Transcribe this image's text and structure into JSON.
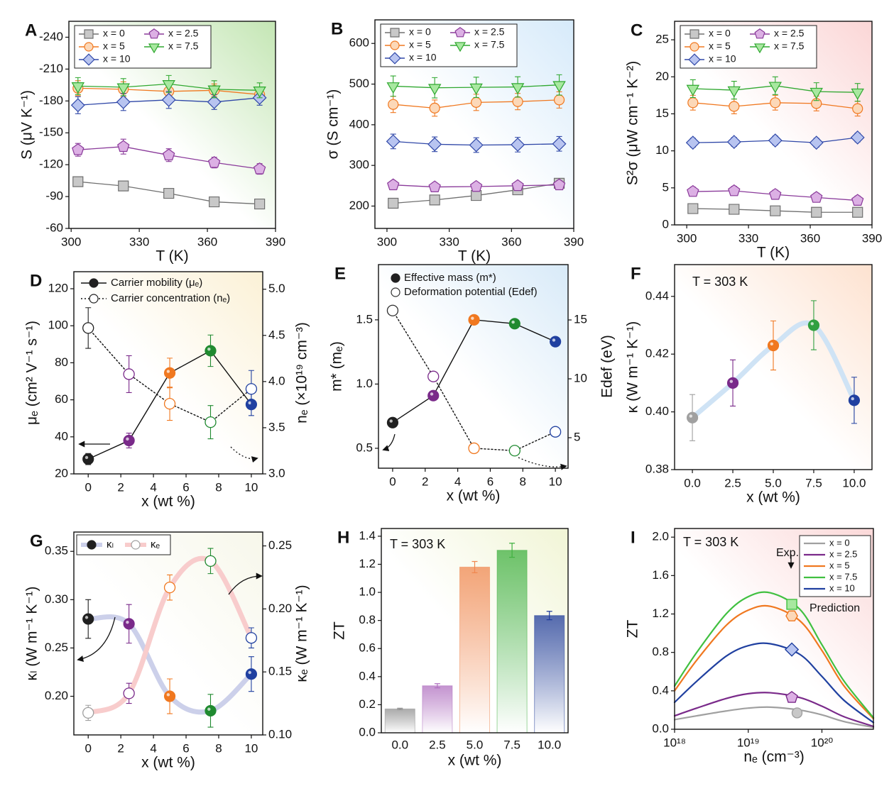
{
  "chart_data": [
    {
      "panel": "A",
      "type": "line",
      "x": [
        303,
        323,
        343,
        363,
        383
      ],
      "xlim": [
        299,
        390
      ],
      "xticks": [
        300,
        330,
        360,
        390
      ],
      "ylim": [
        -60,
        -255
      ],
      "yticks": [
        -240,
        -210,
        -180,
        -150,
        -120,
        -90,
        -60
      ],
      "x_label": "T (K)",
      "y_label": "S (μV K⁻¹)",
      "legend": "upper left",
      "series": [
        {
          "name": "x = 0",
          "color": "#707070",
          "fill": "#c8c8c8",
          "marker": "square",
          "values": [
            -104,
            -100,
            -93,
            -85,
            -83
          ],
          "errors": [
            4,
            4,
            4,
            3,
            3
          ]
        },
        {
          "name": "x = 5",
          "color": "#f07820",
          "fill": "#fcd8b8",
          "marker": "circle",
          "values": [
            -192,
            -191,
            -189,
            -190,
            -186
          ],
          "errors": [
            7,
            7,
            6,
            6,
            6
          ]
        },
        {
          "name": "x = 10",
          "color": "#3048a8",
          "fill": "#b8c4f0",
          "marker": "diamond",
          "values": [
            -176,
            -179,
            -181,
            -179,
            -183
          ],
          "errors": [
            8,
            8,
            8,
            7,
            7
          ]
        },
        {
          "name": "x = 2.5",
          "color": "#8a3a9a",
          "fill": "#dcb0e4",
          "marker": "pentagon",
          "values": [
            -134,
            -137,
            -129,
            -122,
            -116
          ],
          "errors": [
            6,
            7,
            6,
            5,
            5
          ]
        },
        {
          "name": "x = 7.5",
          "color": "#30a830",
          "fill": "#a8e8a0",
          "marker": "triangle-down",
          "values": [
            -194,
            -193,
            -196,
            -191,
            -190
          ],
          "errors": [
            8,
            8,
            8,
            8,
            7
          ]
        }
      ]
    },
    {
      "panel": "B",
      "type": "line",
      "x": [
        303,
        323,
        343,
        363,
        383
      ],
      "xlim": [
        294.2,
        390
      ],
      "xticks": [
        300,
        330,
        360,
        390
      ],
      "ylim": [
        145,
        658
      ],
      "yticks": [
        200,
        300,
        400,
        500,
        600
      ],
      "x_label": "T (K)",
      "y_label": "σ (S cm⁻¹)",
      "legend": "upper left",
      "series": [
        {
          "name": "x = 0",
          "color": "#707070",
          "fill": "#c8c8c8",
          "marker": "square",
          "values": [
            207,
            215,
            226,
            240,
            256
          ],
          "errors": [
            10,
            10,
            10,
            10,
            10
          ]
        },
        {
          "name": "x = 5",
          "color": "#f07820",
          "fill": "#fcd8b8",
          "marker": "circle",
          "values": [
            450,
            441,
            455,
            457,
            461
          ],
          "errors": [
            20,
            20,
            20,
            20,
            20
          ]
        },
        {
          "name": "x = 10",
          "color": "#3048a8",
          "fill": "#b8c4f0",
          "marker": "diamond",
          "values": [
            359,
            352,
            350,
            351,
            353
          ],
          "errors": [
            18,
            18,
            18,
            18,
            18
          ]
        },
        {
          "name": "x = 2.5",
          "color": "#8a3a9a",
          "fill": "#dcb0e4",
          "marker": "pentagon",
          "values": [
            252,
            247,
            248,
            250,
            252
          ],
          "errors": [
            10,
            10,
            10,
            10,
            10
          ]
        },
        {
          "name": "x = 7.5",
          "color": "#30a830",
          "fill": "#a8e8a0",
          "marker": "triangle-down",
          "values": [
            495,
            491,
            492,
            493,
            498
          ],
          "errors": [
            25,
            25,
            25,
            25,
            25
          ]
        }
      ]
    },
    {
      "panel": "C",
      "type": "line",
      "x": [
        303,
        323,
        343,
        363,
        383
      ],
      "xlim": [
        294.1,
        390
      ],
      "xticks": [
        300,
        330,
        360,
        390
      ],
      "ylim": [
        0,
        27.5
      ],
      "yticks": [
        0,
        5,
        10,
        15,
        20,
        25
      ],
      "x_label": "T (K)",
      "y_label": "S²σ (μW cm⁻¹ K⁻²)",
      "legend": "upper left",
      "series": [
        {
          "name": "x = 0",
          "color": "#707070",
          "fill": "#c8c8c8",
          "marker": "square",
          "values": [
            2.2,
            2.1,
            1.9,
            1.7,
            1.7
          ],
          "errors": [
            0.6,
            0.6,
            0.6,
            0.6,
            0.6
          ]
        },
        {
          "name": "x = 5",
          "color": "#f07820",
          "fill": "#fcd8b8",
          "marker": "circle",
          "values": [
            16.5,
            16.0,
            16.5,
            16.4,
            15.7
          ],
          "errors": [
            1,
            1,
            1,
            1,
            1
          ]
        },
        {
          "name": "x = 10",
          "color": "#3048a8",
          "fill": "#b8c4f0",
          "marker": "diamond",
          "values": [
            11.1,
            11.2,
            11.4,
            11.1,
            11.8
          ],
          "errors": [
            0.6,
            0.6,
            0.6,
            0.6,
            0.6
          ]
        },
        {
          "name": "x = 2.5",
          "color": "#8a3a9a",
          "fill": "#dcb0e4",
          "marker": "pentagon",
          "values": [
            4.5,
            4.6,
            4.1,
            3.7,
            3.3
          ],
          "errors": [
            0.6,
            0.6,
            0.6,
            0.6,
            0.6
          ]
        },
        {
          "name": "x = 7.5",
          "color": "#30a830",
          "fill": "#a8e8a0",
          "marker": "triangle-down",
          "values": [
            18.4,
            18.2,
            18.8,
            18.0,
            17.9
          ],
          "errors": [
            1.2,
            1.2,
            1.2,
            1.2,
            1.2
          ]
        }
      ]
    },
    {
      "panel": "D",
      "type": "line",
      "x": [
        0,
        2.5,
        5,
        7.5,
        10
      ],
      "xlim": [
        -0.88,
        10.7
      ],
      "xticks": [
        0,
        2,
        4,
        6,
        8,
        10
      ],
      "ylim": [
        20,
        129.2
      ],
      "yticks": [
        20,
        40,
        60,
        80,
        100,
        120
      ],
      "y2lim": [
        3.0,
        5.19
      ],
      "y2ticks": [
        {
          "value": 3,
          "label": "3.0"
        },
        3.5,
        {
          "value": 4,
          "label": "4.0"
        },
        4.5,
        {
          "value": 5,
          "label": "5.0"
        }
      ],
      "x_label": "x (wt %)",
      "y_label": "μₑ (cm² V⁻¹ s⁻¹)",
      "y2_label": "nₑ (×10¹⁹ cm⁻³)",
      "legend": "upper left",
      "series": [
        {
          "name": "Carrier mobility (μₑ)",
          "color": "#111111",
          "marker": "circle",
          "point_colors": [
            "#202020",
            "#7a2a8a",
            "#f07820",
            "#208a30",
            "#2040a0"
          ],
          "values": [
            28,
            38,
            74.5,
            86.5,
            57.5
          ],
          "errors": [
            3,
            4,
            8,
            8.5,
            6
          ]
        },
        {
          "name": "Carrier concentration (nₑ)",
          "color": "#111111",
          "marker": "circle",
          "open": true,
          "dash": true,
          "axis": "y2",
          "point_colors": [
            "#202020",
            "#7a2a8a",
            "#f07820",
            "#208a30",
            "#2040a0"
          ],
          "values": [
            4.58,
            4.08,
            3.76,
            3.56,
            3.92
          ],
          "errors": [
            0.22,
            0.2,
            0.18,
            0.18,
            0.2
          ]
        }
      ]
    },
    {
      "panel": "E",
      "type": "line",
      "x": [
        0,
        2.5,
        5,
        7.5,
        10
      ],
      "xlim": [
        -0.87,
        10.78
      ],
      "xticks": [
        0,
        2,
        4,
        6,
        8,
        10
      ],
      "ylim": [
        0.345,
        1.93
      ],
      "yticks": [
        0.5,
        {
          "value": 1,
          "label": "1.0"
        },
        1.5
      ],
      "y2lim": [
        2.41,
        19.7
      ],
      "y2ticks": [
        5,
        10,
        15
      ],
      "x_label": "x (wt %)",
      "y_label": "m* (mₑ)",
      "y2_label": "Edef (eV)",
      "legend": "upper left",
      "series": [
        {
          "name": "Effective mass (m*)",
          "color": "#111111",
          "marker": "circle",
          "point_colors": [
            "#202020",
            "#7a2a8a",
            "#f07820",
            "#208a30",
            "#2040a0"
          ],
          "values": [
            0.7,
            0.91,
            1.5,
            1.47,
            1.33
          ]
        },
        {
          "name": "Deformation potential (Edef)",
          "color": "#111111",
          "marker": "circle",
          "open": true,
          "dash": true,
          "axis": "y2",
          "point_colors": [
            "#303030",
            "#7a2a8a",
            "#f07820",
            "#208a30",
            "#2040a0"
          ],
          "values": [
            15.8,
            10.2,
            4.1,
            3.9,
            5.5
          ]
        }
      ]
    },
    {
      "panel": "F",
      "type": "line",
      "x": [
        0,
        2.5,
        5,
        7.5,
        10
      ],
      "xlim": [
        -1.1,
        11.1
      ],
      "xticks": [
        {
          "value": 0,
          "label": "0.0"
        },
        2.5,
        {
          "value": 5,
          "label": "5.0"
        },
        7.5,
        {
          "value": 10,
          "label": "10.0"
        }
      ],
      "ylim": [
        0.38,
        0.451
      ],
      "yticks": [
        0.38,
        {
          "value": 0.4,
          "label": "0.40"
        },
        0.42,
        0.44
      ],
      "x_label": "x (wt %)",
      "y_label": "κ (W m⁻¹ K⁻¹)",
      "annotations": [
        "T = 303 K"
      ],
      "series": [
        {
          "color": "#cfe3f5",
          "smooth": true,
          "marker": "circle",
          "point_colors": [
            "#a0a0a0",
            "#7a2a8a",
            "#f07820",
            "#30a040",
            "#2040a0"
          ],
          "values": [
            0.398,
            0.41,
            0.423,
            0.43,
            0.404
          ],
          "errors": [
            0.008,
            0.008,
            0.0085,
            0.0085,
            0.008
          ]
        }
      ]
    },
    {
      "panel": "G",
      "type": "line",
      "x": [
        0,
        2.5,
        5,
        7.5,
        10
      ],
      "xlim": [
        -0.88,
        10.7
      ],
      "xticks": [
        0,
        2,
        4,
        6,
        8,
        10
      ],
      "ylim": [
        0.16,
        0.37
      ],
      "yticks": [
        {
          "value": 0.2,
          "label": "0.20"
        },
        0.25,
        {
          "value": 0.3,
          "label": "0.30"
        },
        0.35
      ],
      "y2lim": [
        0.1,
        0.261
      ],
      "y2ticks": [
        {
          "value": 0.1,
          "label": "0.10"
        },
        0.15,
        {
          "value": 0.2,
          "label": "0.20"
        },
        0.25
      ],
      "x_label": "x (wt %)",
      "y_label": "κₗ (W m⁻¹ K⁻¹)",
      "y2_label": "κₑ (W m⁻¹ K⁻¹)",
      "legend": "upper left",
      "series": [
        {
          "name": "κₗ",
          "color": "#ccd0ea",
          "smooth": true,
          "marker": "circle",
          "point_colors": [
            "#202020",
            "#7a2a8a",
            "#f07820",
            "#208a30",
            "#2040a0"
          ],
          "values": [
            0.28,
            0.275,
            0.2,
            0.185,
            0.223
          ],
          "errors": [
            0.02,
            0.02,
            0.018,
            0.017,
            0.018
          ]
        },
        {
          "name": "κₑ",
          "color": "#f8cccc",
          "smooth": true,
          "marker": "circle",
          "open": true,
          "axis": "y2",
          "point_colors": [
            "#a0a0a0",
            "#7a2a8a",
            "#f07820",
            "#208a30",
            "#2040a0"
          ],
          "values": [
            0.1175,
            0.133,
            0.217,
            0.238,
            0.177
          ],
          "errors": [
            0.006,
            0.008,
            0.01,
            0.01,
            0.008
          ]
        }
      ]
    },
    {
      "panel": "H",
      "type": "bar",
      "categories": [
        "0.0",
        "2.5",
        "5.0",
        "7.5",
        "10.0"
      ],
      "values": [
        0.17,
        0.335,
        1.18,
        1.3,
        0.835
      ],
      "errors": [
        0.005,
        0.015,
        0.04,
        0.05,
        0.03
      ],
      "colors": [
        "#909090",
        "#b070c0",
        "#f08850",
        "#40b040",
        "#203c9a"
      ],
      "ylim": [
        0,
        1.455
      ],
      "yticks": [
        {
          "value": 0,
          "label": "0.0"
        },
        0.2,
        0.4,
        0.6,
        0.8,
        {
          "value": 1,
          "label": "1.0"
        },
        1.2,
        1.4
      ],
      "x_label": "x (wt %)",
      "y_label": "ZT",
      "annotations": [
        "T = 303 K"
      ]
    },
    {
      "panel": "I",
      "type": "line",
      "xlog": true,
      "x": [
        1e+18,
        2e+18,
        5e+18,
        1e+19,
        2e+19,
        5e+19,
        1e+20,
        2e+20,
        5e+20
      ],
      "xlim": [
        1e+18,
        5e+20
      ],
      "xticks": [
        {
          "value": 1e+18,
          "label": "10¹⁸"
        },
        {
          "value": 1e+19,
          "label": "10¹⁹"
        },
        {
          "value": 1e+20,
          "label": "10²⁰"
        }
      ],
      "ylim": [
        0,
        2.09
      ],
      "yticks": [
        {
          "value": 0,
          "label": "0.0"
        },
        0.4,
        0.8,
        1.2,
        1.6,
        {
          "value": 2,
          "label": "2.0"
        }
      ],
      "x_label": "nₑ (cm⁻³)",
      "y_label": "ZT",
      "legend": "upper right",
      "annotations": [
        "T = 303 K",
        "Exp.",
        "Prediction"
      ],
      "series": [
        {
          "name": "x = 0",
          "color": "#a0a0a0",
          "fill": "#c8c8c8",
          "marker": "circle",
          "smooth": true,
          "values": [
            0.1,
            0.14,
            0.19,
            0.22,
            0.23,
            0.2,
            0.15,
            0.08,
            0.02
          ],
          "point_x": [
            4.6e+19
          ],
          "point_y": [
            0.17
          ]
        },
        {
          "name": "x = 2.5",
          "color": "#7a2a8a",
          "fill": "#dcb0e4",
          "marker": "pentagon",
          "smooth": true,
          "values": [
            0.14,
            0.22,
            0.32,
            0.37,
            0.38,
            0.33,
            0.24,
            0.13,
            0.03
          ],
          "point_x": [
            3.9e+19
          ],
          "point_y": [
            0.33
          ]
        },
        {
          "name": "x = 5",
          "color": "#f07820",
          "fill": "#fcd8b8",
          "marker": "hexagon",
          "smooth": true,
          "values": [
            0.4,
            0.72,
            1.08,
            1.24,
            1.28,
            1.13,
            0.82,
            0.45,
            0.11
          ],
          "point_x": [
            3.9e+19
          ],
          "point_y": [
            1.18
          ]
        },
        {
          "name": "x = 7.5",
          "color": "#40c040",
          "fill": "#a8e8a0",
          "marker": "square",
          "smooth": true,
          "values": [
            0.45,
            0.8,
            1.2,
            1.38,
            1.42,
            1.25,
            0.88,
            0.5,
            0.12
          ],
          "point_x": [
            3.9e+19
          ],
          "point_y": [
            1.3
          ]
        },
        {
          "name": "x = 10",
          "color": "#2040a0",
          "fill": "#b8c4f0",
          "marker": "diamond",
          "smooth": true,
          "values": [
            0.28,
            0.5,
            0.76,
            0.87,
            0.89,
            0.78,
            0.55,
            0.3,
            0.07
          ],
          "point_x": [
            3.9e+19
          ],
          "point_y": [
            0.83
          ]
        }
      ]
    }
  ]
}
